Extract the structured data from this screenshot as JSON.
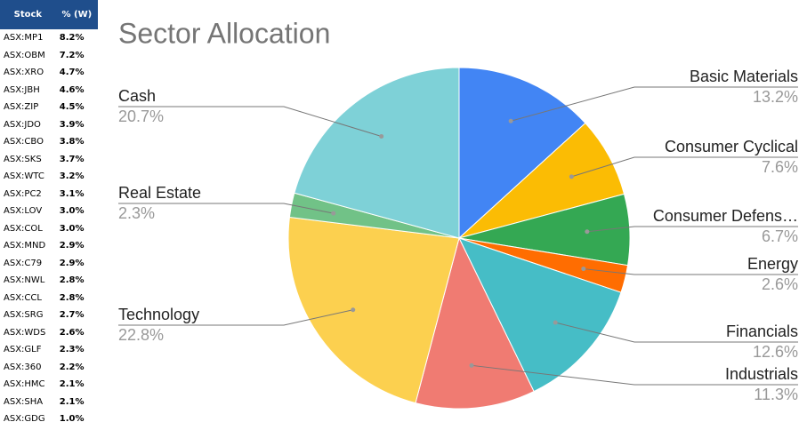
{
  "table": {
    "header": [
      "Stock",
      "% (W)"
    ],
    "rows": [
      [
        "ASX:MP1",
        "8.2%"
      ],
      [
        "ASX:OBM",
        "7.2%"
      ],
      [
        "ASX:XRO",
        "4.7%"
      ],
      [
        "ASX:JBH",
        "4.6%"
      ],
      [
        "ASX:ZIP",
        "4.5%"
      ],
      [
        "ASX:JDO",
        "3.9%"
      ],
      [
        "ASX:CBO",
        "3.8%"
      ],
      [
        "ASX:SKS",
        "3.7%"
      ],
      [
        "ASX:WTC",
        "3.2%"
      ],
      [
        "ASX:PC2",
        "3.1%"
      ],
      [
        "ASX:LOV",
        "3.0%"
      ],
      [
        "ASX:COL",
        "3.0%"
      ],
      [
        "ASX:MND",
        "2.9%"
      ],
      [
        "ASX:C79",
        "2.9%"
      ],
      [
        "ASX:NWL",
        "2.8%"
      ],
      [
        "ASX:CCL",
        "2.8%"
      ],
      [
        "ASX:SRG",
        "2.7%"
      ],
      [
        "ASX:WDS",
        "2.6%"
      ],
      [
        "ASX:GLF",
        "2.3%"
      ],
      [
        "ASX:360",
        "2.2%"
      ],
      [
        "ASX:HMC",
        "2.1%"
      ],
      [
        "ASX:SHA",
        "2.1%"
      ],
      [
        "ASX:GDG",
        "1.0%"
      ]
    ]
  },
  "chart_data": {
    "type": "pie",
    "title": "Sector Allocation",
    "categories": [
      "Basic Materials",
      "Consumer Cyclical",
      "Consumer Defens…",
      "Energy",
      "Financials",
      "Industrials",
      "Technology",
      "Real Estate",
      "Cash"
    ],
    "values": [
      13.2,
      7.6,
      6.7,
      2.6,
      12.6,
      11.3,
      22.8,
      2.3,
      20.7
    ],
    "value_labels": [
      "13.2%",
      "7.6%",
      "6.7%",
      "2.6%",
      "12.6%",
      "11.3%",
      "22.8%",
      "2.3%",
      "20.7%"
    ],
    "colors": [
      "#4285f4",
      "#fbbc04",
      "#34a853",
      "#ff6d01",
      "#46bdc6",
      "#f07b72",
      "#fcd04f",
      "#71c287",
      "#7ed1d7"
    ]
  }
}
